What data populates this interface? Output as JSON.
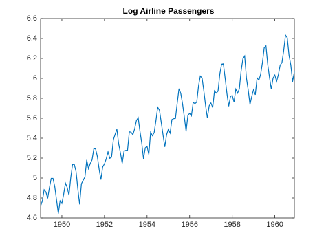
{
  "chart_data": {
    "type": "line",
    "title": "Log Airline Passengers",
    "x": [
      1949,
      1949.083,
      1949.167,
      1949.25,
      1949.333,
      1949.417,
      1949.5,
      1949.583,
      1949.667,
      1949.75,
      1949.833,
      1949.917,
      1950,
      1950.083,
      1950.167,
      1950.25,
      1950.333,
      1950.417,
      1950.5,
      1950.583,
      1950.667,
      1950.75,
      1950.833,
      1950.917,
      1951,
      1951.083,
      1951.167,
      1951.25,
      1951.333,
      1951.417,
      1951.5,
      1951.583,
      1951.667,
      1951.75,
      1951.833,
      1951.917,
      1952,
      1952.083,
      1952.167,
      1952.25,
      1952.333,
      1952.417,
      1952.5,
      1952.583,
      1952.667,
      1952.75,
      1952.833,
      1952.917,
      1953,
      1953.083,
      1953.167,
      1953.25,
      1953.333,
      1953.417,
      1953.5,
      1953.583,
      1953.667,
      1953.75,
      1953.833,
      1953.917,
      1954,
      1954.083,
      1954.167,
      1954.25,
      1954.333,
      1954.417,
      1954.5,
      1954.583,
      1954.667,
      1954.75,
      1954.833,
      1954.917,
      1955,
      1955.083,
      1955.167,
      1955.25,
      1955.333,
      1955.417,
      1955.5,
      1955.583,
      1955.667,
      1955.75,
      1955.833,
      1955.917,
      1956,
      1956.083,
      1956.167,
      1956.25,
      1956.333,
      1956.417,
      1956.5,
      1956.583,
      1956.667,
      1956.75,
      1956.833,
      1956.917,
      1957,
      1957.083,
      1957.167,
      1957.25,
      1957.333,
      1957.417,
      1957.5,
      1957.583,
      1957.667,
      1957.75,
      1957.833,
      1957.917,
      1958,
      1958.083,
      1958.167,
      1958.25,
      1958.333,
      1958.417,
      1958.5,
      1958.583,
      1958.667,
      1958.75,
      1958.833,
      1958.917,
      1959,
      1959.083,
      1959.167,
      1959.25,
      1959.333,
      1959.417,
      1959.5,
      1959.583,
      1959.667,
      1959.75,
      1959.833,
      1959.917,
      1960,
      1960.083,
      1960.167,
      1960.25,
      1960.333,
      1960.417,
      1960.5,
      1960.583,
      1960.667,
      1960.75,
      1960.833,
      1960.917
    ],
    "values": [
      4.718,
      4.771,
      4.883,
      4.86,
      4.796,
      4.905,
      4.997,
      4.997,
      4.913,
      4.779,
      4.644,
      4.771,
      4.745,
      4.836,
      4.949,
      4.905,
      4.828,
      5.004,
      5.136,
      5.136,
      5.063,
      4.89,
      4.736,
      4.942,
      4.977,
      5.011,
      5.182,
      5.094,
      5.147,
      5.182,
      5.293,
      5.293,
      5.215,
      5.088,
      4.984,
      5.112,
      5.142,
      5.193,
      5.263,
      5.198,
      5.209,
      5.384,
      5.438,
      5.489,
      5.342,
      5.252,
      5.147,
      5.268,
      5.278,
      5.278,
      5.464,
      5.46,
      5.434,
      5.493,
      5.576,
      5.606,
      5.468,
      5.352,
      5.193,
      5.303,
      5.318,
      5.236,
      5.46,
      5.425,
      5.455,
      5.576,
      5.71,
      5.68,
      5.557,
      5.434,
      5.313,
      5.434,
      5.489,
      5.451,
      5.587,
      5.595,
      5.598,
      5.753,
      5.897,
      5.849,
      5.743,
      5.613,
      5.468,
      5.628,
      5.649,
      5.624,
      5.759,
      5.746,
      5.762,
      5.924,
      6.023,
      6.004,
      5.872,
      5.724,
      5.602,
      5.724,
      5.753,
      5.707,
      5.875,
      5.852,
      5.872,
      6.045,
      6.142,
      6.146,
      6.001,
      5.849,
      5.72,
      5.817,
      5.829,
      5.762,
      5.892,
      5.852,
      5.894,
      6.075,
      6.196,
      6.225,
      6.001,
      5.883,
      5.737,
      5.82,
      5.886,
      5.835,
      6.006,
      5.981,
      6.04,
      6.157,
      6.306,
      6.326,
      6.138,
      6.009,
      5.892,
      6.004,
      6.033,
      5.969,
      6.038,
      6.133,
      6.157,
      6.282,
      6.433,
      6.407,
      6.23,
      6.133,
      5.966,
      6.068
    ],
    "color": "#0072bd",
    "xlim": [
      1949,
      1960.917
    ],
    "xticks": [
      1950,
      1952,
      1954,
      1956,
      1958,
      1960
    ],
    "ylim": [
      4.6,
      6.6
    ],
    "yticks": [
      4.6,
      4.8,
      5,
      5.2,
      5.4,
      5.6,
      5.8,
      6,
      6.2,
      6.4,
      6.6
    ]
  }
}
